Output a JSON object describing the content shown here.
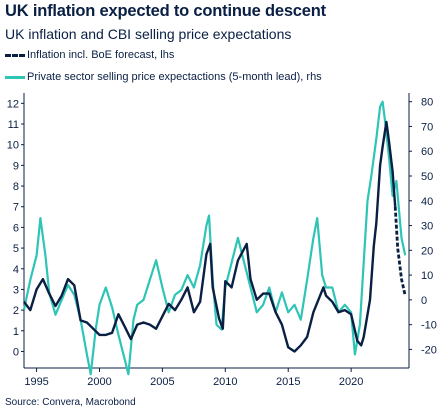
{
  "chart_data": {
    "type": "line",
    "title": "UK inflation expected to continue descent",
    "subtitle": "UK inflation and CBI selling price expectations",
    "source": "Source: Convera, Macrobond",
    "x_ticks": [
      "1995",
      "2000",
      "2005",
      "2010",
      "2015",
      "2020"
    ],
    "xlim": [
      1994.0,
      2024.6
    ],
    "y_left": {
      "lim": [
        -0.8,
        12.5
      ],
      "ticks": [
        "0",
        "1",
        "2",
        "3",
        "4",
        "5",
        "6",
        "7",
        "8",
        "9",
        "10",
        "11",
        "12"
      ]
    },
    "y_right": {
      "lim": [
        -27.5,
        83.5
      ],
      "ticks": [
        "-20",
        "-10",
        "0",
        "10",
        "20",
        "30",
        "40",
        "50",
        "60",
        "70",
        "80"
      ]
    },
    "grid": false,
    "legend_position": "top-left",
    "colors": {
      "inflation": "#0a1f44",
      "cbi": "#2ec4b6"
    },
    "series": [
      {
        "name": "Inflation incl. BoE forecast, lhs",
        "axis": "left",
        "color": "#0a1f44",
        "forecast_from": 2023.5,
        "points": [
          [
            1994.0,
            2.4
          ],
          [
            1994.5,
            2.0
          ],
          [
            1995.0,
            3.0
          ],
          [
            1995.5,
            3.5
          ],
          [
            1996.0,
            2.8
          ],
          [
            1996.5,
            2.2
          ],
          [
            1997.0,
            2.7
          ],
          [
            1997.5,
            3.5
          ],
          [
            1998.0,
            3.2
          ],
          [
            1998.5,
            1.5
          ],
          [
            1999.0,
            1.4
          ],
          [
            1999.5,
            1.1
          ],
          [
            2000.0,
            0.8
          ],
          [
            2000.5,
            0.8
          ],
          [
            2001.0,
            0.9
          ],
          [
            2001.5,
            1.8
          ],
          [
            2002.0,
            1.2
          ],
          [
            2002.5,
            0.6
          ],
          [
            2003.0,
            1.3
          ],
          [
            2003.5,
            1.4
          ],
          [
            2004.0,
            1.3
          ],
          [
            2004.5,
            1.1
          ],
          [
            2005.0,
            1.7
          ],
          [
            2005.5,
            2.3
          ],
          [
            2006.0,
            2.0
          ],
          [
            2006.5,
            2.5
          ],
          [
            2007.0,
            3.1
          ],
          [
            2007.5,
            1.9
          ],
          [
            2008.0,
            2.4
          ],
          [
            2008.5,
            4.7
          ],
          [
            2008.8,
            5.2
          ],
          [
            2009.0,
            3.1
          ],
          [
            2009.5,
            1.6
          ],
          [
            2009.8,
            1.1
          ],
          [
            2010.0,
            3.4
          ],
          [
            2010.5,
            3.1
          ],
          [
            2011.0,
            4.4
          ],
          [
            2011.7,
            5.2
          ],
          [
            2012.0,
            3.5
          ],
          [
            2012.5,
            2.5
          ],
          [
            2013.0,
            2.8
          ],
          [
            2013.5,
            2.8
          ],
          [
            2014.0,
            1.9
          ],
          [
            2014.5,
            1.3
          ],
          [
            2015.0,
            0.2
          ],
          [
            2015.5,
            0.0
          ],
          [
            2016.0,
            0.3
          ],
          [
            2016.5,
            0.7
          ],
          [
            2017.0,
            1.9
          ],
          [
            2017.8,
            3.1
          ],
          [
            2018.0,
            2.7
          ],
          [
            2018.5,
            2.4
          ],
          [
            2019.0,
            1.9
          ],
          [
            2019.5,
            2.0
          ],
          [
            2020.0,
            1.8
          ],
          [
            2020.5,
            0.5
          ],
          [
            2020.8,
            0.3
          ],
          [
            2021.0,
            0.7
          ],
          [
            2021.5,
            2.5
          ],
          [
            2021.8,
            5.1
          ],
          [
            2022.0,
            6.2
          ],
          [
            2022.3,
            9.0
          ],
          [
            2022.5,
            9.9
          ],
          [
            2022.8,
            11.1
          ],
          [
            2023.0,
            10.2
          ],
          [
            2023.3,
            8.7
          ],
          [
            2023.5,
            7.0
          ],
          [
            2023.7,
            5.0
          ],
          [
            2024.0,
            3.5
          ],
          [
            2024.3,
            2.7
          ]
        ]
      },
      {
        "name": "Private sector selling price expectactions (5-month lead), rhs",
        "axis": "right",
        "color": "#2ec4b6",
        "points": [
          [
            1994.0,
            -4
          ],
          [
            1994.5,
            8
          ],
          [
            1995.0,
            18
          ],
          [
            1995.3,
            33
          ],
          [
            1995.7,
            18
          ],
          [
            1996.0,
            3
          ],
          [
            1996.5,
            -6
          ],
          [
            1997.0,
            0
          ],
          [
            1997.5,
            6
          ],
          [
            1998.0,
            2
          ],
          [
            1998.5,
            -8
          ],
          [
            1999.0,
            -22
          ],
          [
            1999.3,
            -30
          ],
          [
            1999.7,
            -12
          ],
          [
            2000.0,
            -2
          ],
          [
            2000.5,
            5
          ],
          [
            2001.0,
            -3
          ],
          [
            2001.5,
            -14
          ],
          [
            2002.0,
            -24
          ],
          [
            2002.3,
            -30
          ],
          [
            2002.7,
            -8
          ],
          [
            2003.0,
            -2
          ],
          [
            2003.5,
            0
          ],
          [
            2004.0,
            8
          ],
          [
            2004.5,
            16
          ],
          [
            2005.0,
            5
          ],
          [
            2005.5,
            -5
          ],
          [
            2006.0,
            2
          ],
          [
            2006.5,
            4
          ],
          [
            2007.0,
            10
          ],
          [
            2007.5,
            5
          ],
          [
            2008.0,
            14
          ],
          [
            2008.5,
            30
          ],
          [
            2008.7,
            34
          ],
          [
            2009.0,
            8
          ],
          [
            2009.3,
            -10
          ],
          [
            2009.7,
            -12
          ],
          [
            2010.0,
            5
          ],
          [
            2010.5,
            15
          ],
          [
            2011.0,
            25
          ],
          [
            2011.5,
            15
          ],
          [
            2012.0,
            5
          ],
          [
            2012.5,
            -5
          ],
          [
            2013.0,
            -2
          ],
          [
            2013.5,
            5
          ],
          [
            2014.0,
            -5
          ],
          [
            2014.5,
            3
          ],
          [
            2015.0,
            -5
          ],
          [
            2015.5,
            -2
          ],
          [
            2016.0,
            -8
          ],
          [
            2016.5,
            8
          ],
          [
            2017.0,
            25
          ],
          [
            2017.3,
            33
          ],
          [
            2017.7,
            10
          ],
          [
            2018.0,
            5
          ],
          [
            2018.5,
            5
          ],
          [
            2019.0,
            -5
          ],
          [
            2019.5,
            -2
          ],
          [
            2020.0,
            -5
          ],
          [
            2020.3,
            -22
          ],
          [
            2020.7,
            -10
          ],
          [
            2021.0,
            15
          ],
          [
            2021.3,
            40
          ],
          [
            2021.6,
            50
          ],
          [
            2022.0,
            65
          ],
          [
            2022.3,
            78
          ],
          [
            2022.5,
            80
          ],
          [
            2022.7,
            72
          ],
          [
            2023.0,
            58
          ],
          [
            2023.3,
            42
          ],
          [
            2023.6,
            48
          ],
          [
            2024.0,
            25
          ],
          [
            2024.3,
            18
          ]
        ]
      }
    ]
  }
}
